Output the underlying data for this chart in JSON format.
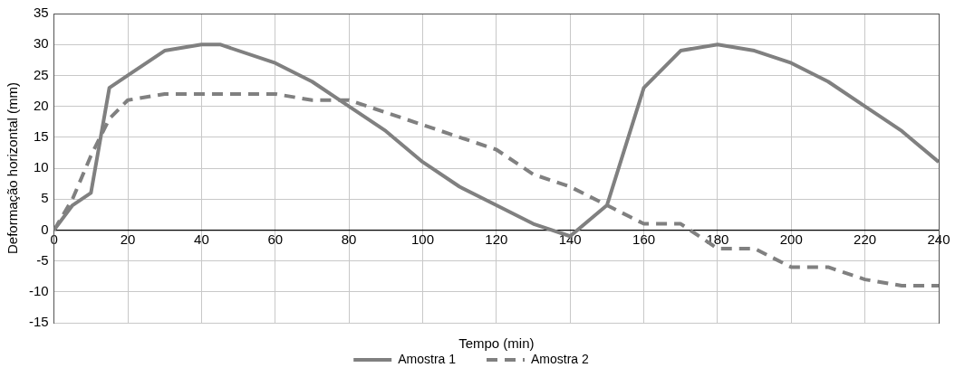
{
  "chart_data": {
    "type": "line",
    "xlabel": "Tempo (min)",
    "ylabel": "Deformação horizontal (mm)",
    "xlim": [
      0,
      240
    ],
    "xticks": [
      0,
      20,
      40,
      60,
      80,
      100,
      120,
      140,
      160,
      180,
      200,
      220,
      240
    ],
    "ylim": [
      -15,
      35
    ],
    "yticks": [
      -15,
      -10,
      -5,
      0,
      5,
      10,
      15,
      20,
      25,
      30,
      35
    ],
    "grid": true,
    "legend": "bottom",
    "marker": "none",
    "series": [
      {
        "name": "Amostra 1",
        "color": "#808080",
        "line_style": "solid",
        "x": [
          0,
          5,
          10,
          15,
          20,
          30,
          40,
          45,
          60,
          70,
          80,
          90,
          100,
          110,
          120,
          130,
          140,
          150,
          160,
          170,
          180,
          190,
          200,
          210,
          220,
          230,
          240
        ],
        "values": [
          0,
          4,
          6,
          23,
          25,
          29,
          30,
          30,
          27,
          24,
          20,
          16,
          11,
          7,
          4,
          1,
          -1,
          4,
          23,
          29,
          30,
          29,
          27,
          24,
          20,
          16,
          11
        ]
      },
      {
        "name": "Amostra 2",
        "color": "#808080",
        "line_style": "dashed",
        "x": [
          0,
          2,
          5,
          10,
          15,
          20,
          30,
          40,
          60,
          70,
          80,
          90,
          100,
          110,
          120,
          130,
          140,
          150,
          160,
          170,
          180,
          190,
          200,
          210,
          220,
          230,
          240
        ],
        "values": [
          0,
          2,
          5,
          12,
          18,
          21,
          22,
          22,
          22,
          21,
          21,
          19,
          17,
          15,
          13,
          9,
          7,
          4,
          1,
          1,
          -3,
          -3,
          -6,
          -6,
          -8,
          -9,
          -9
        ]
      }
    ]
  }
}
